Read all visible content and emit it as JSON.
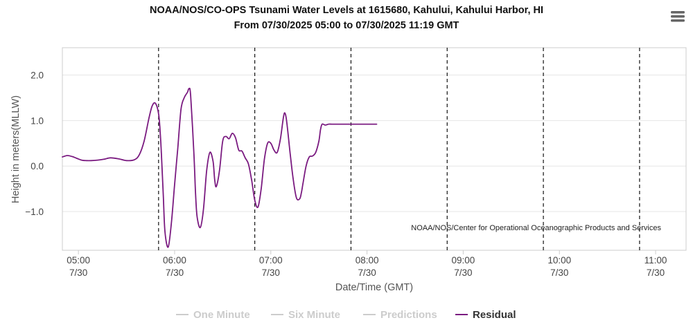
{
  "chart_data": {
    "type": "line",
    "title": "NOAA/NOS/CO-OPS Tsunami Water Levels at 1615680, Kahului, Kahului Harbor, HI",
    "subtitle": "From 07/30/2025 05:00 to 07/30/2025 11:19 GMT",
    "xlabel": "Date/Time (GMT)",
    "ylabel": "Height in meters(MLLW)",
    "credit": "NOAA/NOS/Center for Operational Oceanographic Products and Services",
    "xlim": [
      "07/30/2025 04:50",
      "07/30/2025 11:19"
    ],
    "ylim": [
      -1.85,
      2.6
    ],
    "y_ticks": [
      {
        "value": 2.0,
        "label": "2.0"
      },
      {
        "value": 1.0,
        "label": "1.0"
      },
      {
        "value": 0.0,
        "label": "0.0"
      },
      {
        "value": -1.0,
        "label": "−1.0"
      }
    ],
    "x_ticks": [
      {
        "time": "05:00",
        "time_label": "05:00",
        "date_label": "7/30"
      },
      {
        "time": "06:00",
        "time_label": "06:00",
        "date_label": "7/30"
      },
      {
        "time": "07:00",
        "time_label": "07:00",
        "date_label": "7/30"
      },
      {
        "time": "08:00",
        "time_label": "08:00",
        "date_label": "7/30"
      },
      {
        "time": "09:00",
        "time_label": "09:00",
        "date_label": "7/30"
      },
      {
        "time": "10:00",
        "time_label": "10:00",
        "date_label": "7/30"
      },
      {
        "time": "11:00",
        "time_label": "11:00",
        "date_label": "7/30"
      }
    ],
    "vertical_markers": [
      "05:50",
      "06:50",
      "07:50",
      "08:50",
      "09:50",
      "10:50"
    ],
    "grid": true,
    "legend_position": "bottom-center",
    "legend": [
      {
        "label": "One Minute",
        "color": "#cccccc",
        "active": false
      },
      {
        "label": "Six Minute",
        "color": "#cccccc",
        "active": false
      },
      {
        "label": "Predictions",
        "color": "#cccccc",
        "active": false
      },
      {
        "label": "Residual",
        "color": "#7a1a80",
        "active": true
      }
    ],
    "series": [
      {
        "name": "Residual",
        "color": "#7a1a80",
        "x": [
          "04:50",
          "04:53",
          "04:56",
          "04:59",
          "05:02",
          "05:05",
          "05:08",
          "05:12",
          "05:16",
          "05:20",
          "05:25",
          "05:30",
          "05:35",
          "05:38",
          "05:41",
          "05:44",
          "05:46",
          "05:48",
          "05:50",
          "05:51",
          "05:52",
          "05:53",
          "05:54",
          "05:56",
          "05:58",
          "06:00",
          "06:02",
          "06:04",
          "06:06",
          "06:08",
          "06:09",
          "06:10",
          "06:12",
          "06:13",
          "06:14",
          "06:16",
          "06:18",
          "06:20",
          "06:22",
          "06:24",
          "06:25",
          "06:26",
          "06:28",
          "06:30",
          "06:32",
          "06:34",
          "06:36",
          "06:38",
          "06:40",
          "06:42",
          "06:44",
          "06:46",
          "06:48",
          "06:50",
          "06:52",
          "06:54",
          "06:56",
          "06:58",
          "07:00",
          "07:02",
          "07:04",
          "07:06",
          "07:08",
          "07:09",
          "07:10",
          "07:12",
          "07:14",
          "07:16",
          "07:18",
          "07:19",
          "07:20",
          "07:22",
          "07:24",
          "07:26",
          "07:28",
          "07:30",
          "07:31",
          "07:32",
          "07:34",
          "07:36",
          "07:38",
          "07:40",
          "07:42",
          "07:44",
          "07:46",
          "07:47",
          "07:48",
          "07:50",
          "07:52",
          "07:54",
          "07:56",
          "07:58",
          "08:00",
          "08:02",
          "08:04",
          "08:06"
        ],
        "values": [
          0.2,
          0.23,
          0.21,
          0.17,
          0.13,
          0.12,
          0.12,
          0.13,
          0.15,
          0.18,
          0.16,
          0.12,
          0.14,
          0.25,
          0.55,
          1.05,
          1.32,
          1.38,
          1.15,
          0.75,
          0.1,
          -0.7,
          -1.45,
          -1.78,
          -1.25,
          -0.4,
          0.4,
          1.25,
          1.5,
          1.62,
          1.7,
          1.55,
          0.3,
          -0.55,
          -1.1,
          -1.35,
          -0.95,
          -0.1,
          0.3,
          0.1,
          -0.3,
          -0.45,
          -0.1,
          0.55,
          0.65,
          0.6,
          0.72,
          0.62,
          0.35,
          0.33,
          0.18,
          0.05,
          -0.3,
          -0.75,
          -0.9,
          -0.5,
          0.15,
          0.5,
          0.5,
          0.35,
          0.3,
          0.6,
          1.1,
          1.15,
          0.95,
          0.3,
          -0.3,
          -0.7,
          -0.72,
          -0.6,
          -0.4,
          0.0,
          0.2,
          0.22,
          0.3,
          0.55,
          0.8,
          0.92,
          0.9,
          0.92,
          0.92,
          0.92,
          0.92,
          0.92,
          0.92,
          0.92,
          0.92,
          0.92,
          0.92,
          0.92,
          0.92,
          0.92,
          0.92,
          0.92,
          0.92,
          0.92
        ]
      }
    ]
  }
}
